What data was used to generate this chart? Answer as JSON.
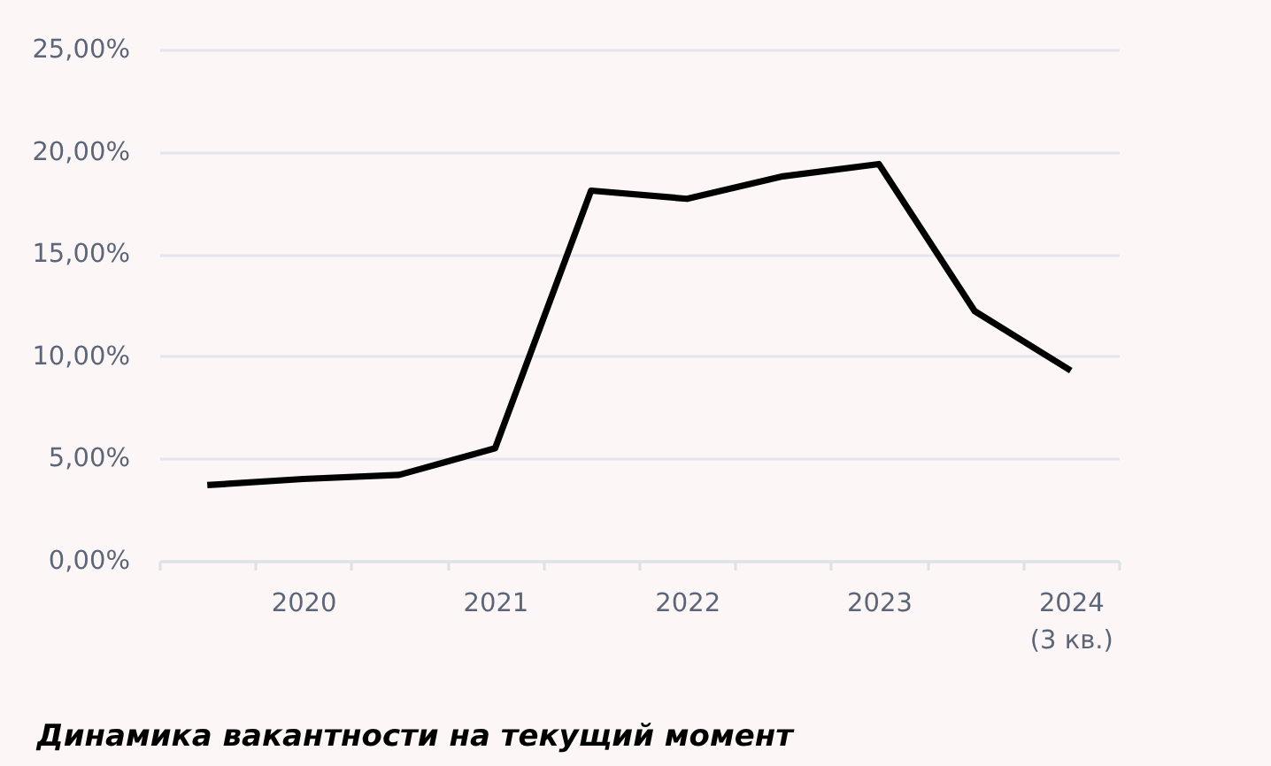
{
  "chart_data": {
    "type": "line",
    "title": "Динамика вакантности на текущий момент",
    "categories": [
      null,
      "2020",
      null,
      "2021",
      null,
      "2022",
      null,
      "2023",
      null,
      "2024\n(3 кв.)"
    ],
    "series": [
      {
        "color": "#000000",
        "values": [
          3.7,
          4.0,
          4.2,
          5.5,
          18.1,
          17.7,
          18.8,
          19.4,
          12.2,
          9.3
        ]
      }
    ],
    "ylim": [
      0,
      25
    ],
    "yticks": [
      {
        "value": 0,
        "label": "0,00%"
      },
      {
        "value": 5,
        "label": "5,00%"
      },
      {
        "value": 10,
        "label": "10,00%"
      },
      {
        "value": 15,
        "label": "15,00%"
      },
      {
        "value": 20,
        "label": "20,00%"
      },
      {
        "value": 25,
        "label": "25,00%"
      }
    ],
    "grid": "y"
  }
}
